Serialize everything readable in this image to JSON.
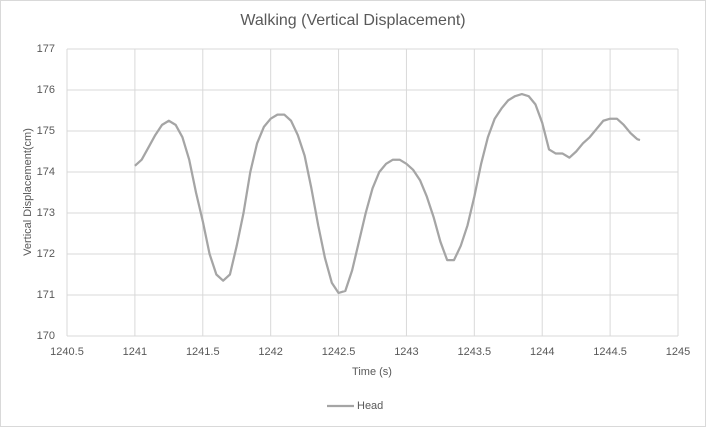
{
  "chart_data": {
    "type": "line",
    "title": "Walking (Vertical Displacement)",
    "x_label": "Time (s)",
    "y_label": "Vertical Displacement(cm)",
    "x": [
      1241.0,
      1241.05,
      1241.1,
      1241.15,
      1241.2,
      1241.25,
      1241.3,
      1241.35,
      1241.4,
      1241.45,
      1241.5,
      1241.55,
      1241.6,
      1241.65,
      1241.7,
      1241.75,
      1241.8,
      1241.85,
      1241.9,
      1241.95,
      1242.0,
      1242.05,
      1242.1,
      1242.15,
      1242.2,
      1242.25,
      1242.3,
      1242.35,
      1242.4,
      1242.45,
      1242.5,
      1242.55,
      1242.6,
      1242.65,
      1242.7,
      1242.75,
      1242.8,
      1242.85,
      1242.9,
      1242.95,
      1243.0,
      1243.05,
      1243.1,
      1243.15,
      1243.2,
      1243.25,
      1243.3,
      1243.35,
      1243.4,
      1243.45,
      1243.5,
      1243.55,
      1243.6,
      1243.65,
      1243.7,
      1243.75,
      1243.8,
      1243.85,
      1243.9,
      1243.95,
      1244.0,
      1244.05,
      1244.1,
      1244.15,
      1244.2,
      1244.25,
      1244.3,
      1244.35,
      1244.4,
      1244.45,
      1244.5,
      1244.55,
      1244.6,
      1244.65,
      1244.7,
      1244.72
    ],
    "series": [
      {
        "name": "Head",
        "color": "#a5a5a5",
        "values": [
          174.15,
          174.3,
          174.6,
          174.9,
          175.15,
          175.25,
          175.15,
          174.85,
          174.3,
          173.5,
          172.8,
          172.0,
          171.5,
          171.35,
          171.5,
          172.2,
          173.0,
          174.0,
          174.7,
          175.1,
          175.3,
          175.4,
          175.4,
          175.25,
          174.9,
          174.4,
          173.6,
          172.7,
          171.9,
          171.3,
          171.05,
          171.1,
          171.6,
          172.3,
          173.0,
          173.6,
          174.0,
          174.2,
          174.3,
          174.3,
          174.2,
          174.05,
          173.8,
          173.4,
          172.9,
          172.3,
          171.85,
          171.85,
          172.2,
          172.7,
          173.4,
          174.2,
          174.85,
          175.3,
          175.55,
          175.75,
          175.85,
          175.9,
          175.85,
          175.65,
          175.2,
          174.55,
          174.45,
          174.45,
          174.35,
          174.5,
          174.7,
          174.85,
          175.05,
          175.25,
          175.3,
          175.3,
          175.15,
          174.95,
          174.8,
          174.78
        ]
      }
    ],
    "xlim": [
      1240.5,
      1245
    ],
    "xticks": [
      1240.5,
      1241,
      1241.5,
      1242,
      1242.5,
      1243,
      1243.5,
      1244,
      1244.5,
      1245
    ],
    "ylim": [
      170,
      177
    ],
    "yticks": [
      170,
      171,
      172,
      173,
      174,
      175,
      176,
      177
    ],
    "grid": true,
    "legend": "bottom"
  }
}
